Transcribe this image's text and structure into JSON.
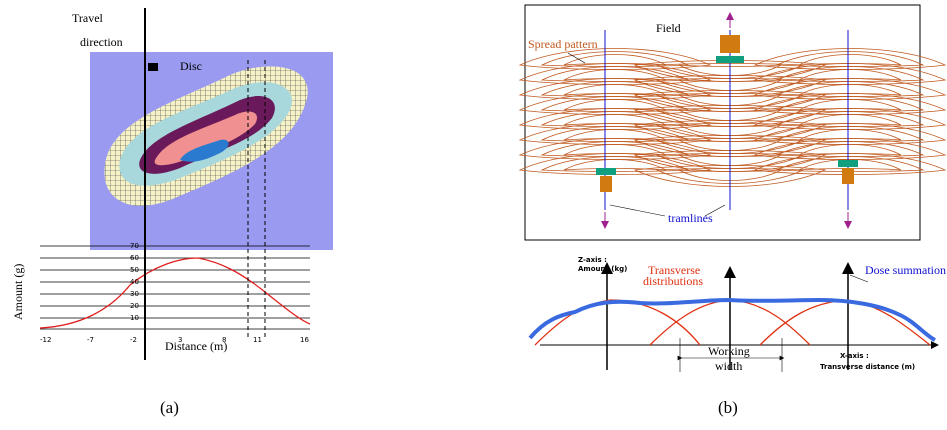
{
  "panel_a": {
    "travel_label": [
      "Travel",
      "direction"
    ],
    "disc_label": "Disc",
    "y_label": "Amount (g)",
    "y_tick_labels": [
      "70",
      "60",
      "50",
      "40",
      "30",
      "20",
      "10"
    ],
    "x_tick_labels": [
      "-12",
      "-7",
      "-2",
      "3",
      "8",
      "11",
      "16"
    ],
    "x_label": "Distance (m)",
    "caption": "(a)"
  },
  "panel_b": {
    "field_label": "Field",
    "spread_label": "Spread pattern",
    "tramlines_label": "tramlines",
    "z_axis_label": [
      "Z-axis :",
      "Amount (kg)"
    ],
    "transverse_label": [
      "Transverse",
      "distributions"
    ],
    "dose_label": "Dose summation",
    "working_label": [
      "Working",
      "width"
    ],
    "x_axis_label": [
      "X-axis :",
      "Transverse distance (m)"
    ],
    "caption": "(b)"
  }
}
